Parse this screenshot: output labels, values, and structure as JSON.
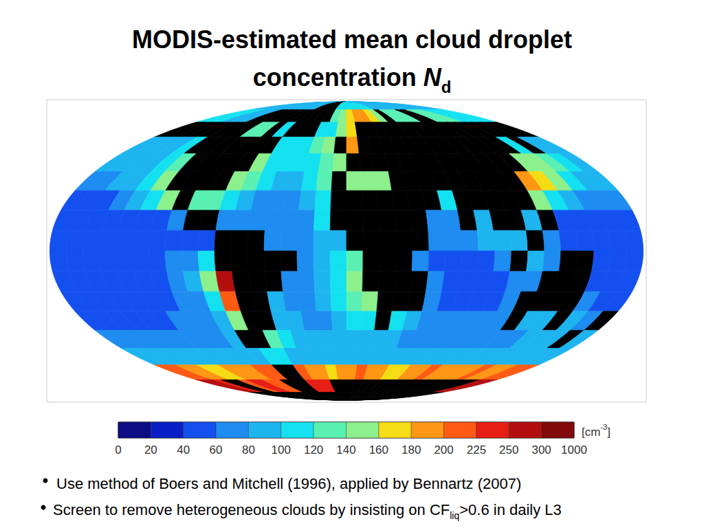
{
  "chart_data": {
    "type": "map",
    "title": {
      "lines": [
        "MODIS-estimated mean cloud droplet",
        "concentration"
      ],
      "symbol": "N",
      "subscript": "d"
    },
    "notes": [
      {
        "text": "Use method of Boers and Mitchell (1996), applied by Bennartz (2007)"
      },
      {
        "text": "Screen to remove heterogeneous clouds by insisting on CF",
        "subscript": "liq",
        "after": ">0.6 in daily L3"
      }
    ],
    "lon_bins": [
      -180,
      -170,
      -160,
      -150,
      -140,
      -130,
      -120,
      -110,
      -100,
      -90,
      -80,
      -70,
      -60,
      -50,
      -40,
      -30,
      -20,
      -10,
      0,
      10,
      20,
      30,
      40,
      50,
      60,
      70,
      80,
      90,
      100,
      110,
      120,
      130,
      140,
      150,
      160,
      170,
      180
    ],
    "lat_bins": [
      90,
      80,
      70,
      60,
      50,
      40,
      30,
      20,
      10,
      0,
      -10,
      -20,
      -30,
      -40,
      -50,
      -60,
      -70,
      -80,
      -90
    ],
    "cells": [
      [
        90,
        90,
        90,
        90,
        90,
        90,
        90,
        90,
        90,
        90,
        90,
        90,
        null,
        null,
        null,
        null,
        100,
        100,
        100,
        100,
        100,
        100,
        100,
        90,
        90,
        90,
        90,
        90,
        90,
        90,
        90,
        90,
        90,
        90,
        90,
        90
      ],
      [
        100,
        100,
        100,
        90,
        90,
        90,
        null,
        null,
        null,
        null,
        null,
        null,
        null,
        null,
        null,
        null,
        120,
        140,
        170,
        190,
        180,
        160,
        150,
        null,
        130,
        130,
        120,
        null,
        null,
        130,
        120,
        120,
        110,
        110,
        110,
        100
      ],
      [
        null,
        null,
        null,
        null,
        null,
        null,
        null,
        null,
        120,
        130,
        null,
        110,
        null,
        null,
        null,
        100,
        110,
        140,
        170,
        null,
        null,
        null,
        null,
        null,
        null,
        null,
        null,
        null,
        null,
        null,
        null,
        null,
        null,
        null,
        null,
        null
      ],
      [
        80,
        80,
        80,
        80,
        100,
        null,
        null,
        null,
        null,
        null,
        null,
        null,
        110,
        100,
        110,
        120,
        140,
        null,
        190,
        null,
        null,
        null,
        null,
        null,
        null,
        null,
        null,
        null,
        null,
        null,
        null,
        null,
        100,
        null,
        90,
        80
      ],
      [
        80,
        80,
        80,
        90,
        100,
        130,
        null,
        null,
        null,
        null,
        null,
        150,
        110,
        100,
        100,
        110,
        120,
        150,
        null,
        null,
        null,
        null,
        null,
        null,
        null,
        null,
        null,
        null,
        null,
        null,
        null,
        150,
        150,
        120,
        100,
        90
      ],
      [
        70,
        70,
        80,
        90,
        110,
        150,
        null,
        null,
        null,
        null,
        150,
        120,
        100,
        90,
        90,
        100,
        120,
        null,
        150,
        150,
        150,
        null,
        null,
        null,
        null,
        null,
        null,
        null,
        null,
        null,
        180,
        160,
        140,
        110,
        90,
        80
      ],
      [
        50,
        50,
        50,
        60,
        80,
        110,
        140,
        null,
        120,
        120,
        110,
        80,
        70,
        70,
        70,
        80,
        100,
        null,
        null,
        null,
        null,
        null,
        null,
        null,
        100,
        null,
        null,
        null,
        null,
        null,
        150,
        110,
        90,
        70,
        60,
        60
      ],
      [
        40,
        40,
        40,
        40,
        45,
        50,
        55,
        60,
        null,
        null,
        70,
        70,
        60,
        60,
        60,
        70,
        110,
        null,
        null,
        null,
        null,
        null,
        null,
        70,
        70,
        null,
        80,
        null,
        null,
        90,
        null,
        50,
        45,
        45,
        40,
        40
      ],
      [
        40,
        40,
        40,
        40,
        40,
        45,
        45,
        45,
        50,
        50,
        null,
        null,
        null,
        60,
        60,
        70,
        80,
        90,
        null,
        null,
        null,
        null,
        null,
        60,
        60,
        70,
        80,
        80,
        90,
        null,
        60,
        45,
        40,
        40,
        40,
        40
      ],
      [
        45,
        40,
        40,
        40,
        40,
        45,
        50,
        60,
        70,
        100,
        null,
        null,
        null,
        null,
        null,
        70,
        80,
        100,
        130,
        null,
        null,
        null,
        60,
        50,
        50,
        50,
        50,
        60,
        null,
        80,
        70,
        null,
        null,
        50,
        45,
        45
      ],
      [
        40,
        40,
        40,
        40,
        40,
        45,
        50,
        60,
        80,
        140,
        250,
        null,
        null,
        null,
        60,
        70,
        90,
        110,
        140,
        null,
        null,
        null,
        null,
        60,
        50,
        50,
        50,
        50,
        60,
        70,
        null,
        null,
        null,
        50,
        45,
        45
      ],
      [
        40,
        40,
        40,
        40,
        40,
        50,
        55,
        60,
        70,
        100,
        200,
        null,
        null,
        80,
        70,
        70,
        80,
        100,
        120,
        140,
        null,
        null,
        null,
        60,
        50,
        50,
        50,
        50,
        60,
        null,
        null,
        null,
        null,
        60,
        50,
        45
      ],
      [
        50,
        50,
        50,
        50,
        50,
        50,
        60,
        60,
        70,
        90,
        150,
        null,
        null,
        90,
        80,
        70,
        70,
        80,
        100,
        110,
        null,
        100,
        80,
        60,
        60,
        60,
        60,
        60,
        60,
        null,
        80,
        90,
        null,
        80,
        70,
        null
      ],
      [
        60,
        60,
        60,
        60,
        60,
        60,
        60,
        60,
        70,
        80,
        null,
        null,
        120,
        100,
        90,
        80,
        80,
        80,
        80,
        80,
        80,
        80,
        70,
        70,
        70,
        70,
        70,
        70,
        70,
        70,
        70,
        80,
        80,
        80,
        null,
        80
      ],
      [
        80,
        80,
        80,
        80,
        80,
        80,
        80,
        80,
        80,
        90,
        90,
        110,
        100,
        90,
        90,
        90,
        90,
        90,
        90,
        90,
        90,
        90,
        90,
        90,
        90,
        90,
        90,
        90,
        90,
        90,
        90,
        90,
        90,
        90,
        90,
        90
      ],
      [
        220,
        200,
        180,
        180,
        170,
        170,
        180,
        180,
        190,
        200,
        210,
        null,
        null,
        200,
        190,
        180,
        170,
        180,
        190,
        200,
        190,
        180,
        170,
        170,
        180,
        190,
        200,
        190,
        180,
        180,
        190,
        200,
        190,
        180,
        200,
        220
      ],
      [
        260,
        250,
        240,
        null,
        null,
        220,
        230,
        230,
        220,
        210,
        null,
        null,
        null,
        230,
        240,
        230,
        null,
        null,
        null,
        null,
        null,
        null,
        null,
        null,
        null,
        null,
        null,
        null,
        null,
        null,
        null,
        null,
        null,
        null,
        250,
        260
      ],
      [
        null,
        null,
        null,
        null,
        null,
        null,
        null,
        null,
        null,
        null,
        null,
        null,
        null,
        null,
        null,
        null,
        null,
        null,
        null,
        null,
        null,
        null,
        null,
        null,
        null,
        null,
        null,
        null,
        null,
        null,
        null,
        null,
        null,
        null,
        null,
        null
      ]
    ],
    "colorbar": {
      "bounds": [
        0,
        20,
        40,
        60,
        80,
        100,
        120,
        140,
        160,
        180,
        200,
        225,
        250,
        300,
        1000
      ],
      "colors": [
        "#0c0c84",
        "#0a1ec8",
        "#1450f0",
        "#1e8cf0",
        "#1eb4f0",
        "#14e1f0",
        "#5af0b4",
        "#8cf08c",
        "#f5dc14",
        "#ff9614",
        "#ff5a14",
        "#e61e14",
        "#b40f0f",
        "#820a0a"
      ],
      "unit": {
        "text": "[cm",
        "superscript": "-3",
        "after": "]"
      }
    }
  }
}
